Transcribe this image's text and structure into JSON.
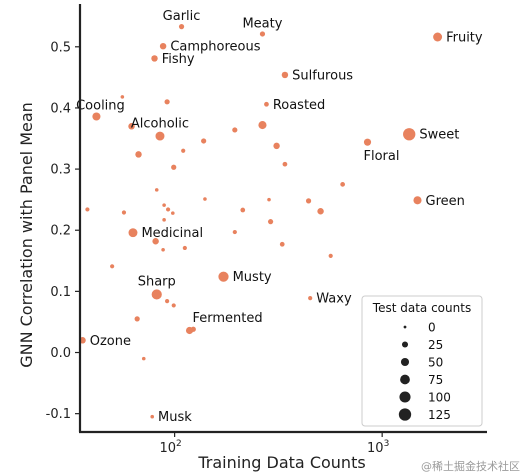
{
  "chart_data": {
    "type": "scatter",
    "xlabel": "Training Data Counts",
    "ylabel": "GNN Correlation with Panel Mean",
    "xscale": "log",
    "xlim": [
      35,
      3200
    ],
    "ylim": [
      -0.13,
      0.57
    ],
    "x_ticks": [
      {
        "value": 100,
        "label": "10",
        "exp": "2"
      },
      {
        "value": 1000,
        "label": "10",
        "exp": "3"
      }
    ],
    "y_ticks": [
      -0.1,
      0.0,
      0.1,
      0.2,
      0.3,
      0.4,
      0.5
    ],
    "point_color": "#e8825e",
    "size_legend": {
      "title": "Test data counts",
      "entries": [
        {
          "label": "0",
          "value": 0
        },
        {
          "label": "25",
          "value": 25
        },
        {
          "label": "50",
          "value": 50
        },
        {
          "label": "75",
          "value": 75
        },
        {
          "label": "100",
          "value": 100
        },
        {
          "label": "125",
          "value": 125
        }
      ],
      "placement": "lower-right"
    },
    "points": [
      {
        "x": 108,
        "y": 0.533,
        "s": 8,
        "label": "Garlic"
      },
      {
        "x": 265,
        "y": 0.521,
        "s": 8,
        "label": "Meaty"
      },
      {
        "x": 1850,
        "y": 0.516,
        "s": 30,
        "label": "Fruity"
      },
      {
        "x": 88,
        "y": 0.501,
        "s": 14,
        "label": "Camphoreous"
      },
      {
        "x": 80,
        "y": 0.481,
        "s": 14,
        "label": "Fishy"
      },
      {
        "x": 340,
        "y": 0.454,
        "s": 14,
        "label": "Sulfurous"
      },
      {
        "x": 277,
        "y": 0.406,
        "s": 6,
        "label": "Roasted"
      },
      {
        "x": 42,
        "y": 0.386,
        "s": 24,
        "label": "Cooling"
      },
      {
        "x": 85,
        "y": 0.354,
        "s": 30,
        "label": "Alcoholic"
      },
      {
        "x": 1350,
        "y": 0.357,
        "s": 60,
        "label": "Sweet"
      },
      {
        "x": 850,
        "y": 0.344,
        "s": 18,
        "label": "Floral"
      },
      {
        "x": 1480,
        "y": 0.249,
        "s": 24,
        "label": "Green"
      },
      {
        "x": 63,
        "y": 0.196,
        "s": 30,
        "label": "Medicinal"
      },
      {
        "x": 172,
        "y": 0.124,
        "s": 40,
        "label": "Musty"
      },
      {
        "x": 82,
        "y": 0.095,
        "s": 40,
        "label": "Sharp"
      },
      {
        "x": 450,
        "y": 0.089,
        "s": 4,
        "label": "Waxy"
      },
      {
        "x": 118,
        "y": 0.036,
        "s": 18,
        "label": "Fermented"
      },
      {
        "x": 36,
        "y": 0.02,
        "s": 14,
        "label": "Ozone"
      },
      {
        "x": 78,
        "y": -0.105,
        "s": 2,
        "label": "Musk"
      },
      {
        "x": 56,
        "y": 0.418,
        "s": 2
      },
      {
        "x": 92,
        "y": 0.41,
        "s": 8
      },
      {
        "x": 62,
        "y": 0.37,
        "s": 14
      },
      {
        "x": 195,
        "y": 0.364,
        "s": 8
      },
      {
        "x": 265,
        "y": 0.372,
        "s": 24
      },
      {
        "x": 138,
        "y": 0.346,
        "s": 8
      },
      {
        "x": 310,
        "y": 0.338,
        "s": 14
      },
      {
        "x": 67,
        "y": 0.324,
        "s": 14
      },
      {
        "x": 110,
        "y": 0.33,
        "s": 4
      },
      {
        "x": 99,
        "y": 0.303,
        "s": 8
      },
      {
        "x": 340,
        "y": 0.308,
        "s": 6
      },
      {
        "x": 645,
        "y": 0.275,
        "s": 6
      },
      {
        "x": 82,
        "y": 0.266,
        "s": 2
      },
      {
        "x": 140,
        "y": 0.251,
        "s": 2
      },
      {
        "x": 285,
        "y": 0.25,
        "s": 2
      },
      {
        "x": 442,
        "y": 0.248,
        "s": 8
      },
      {
        "x": 89,
        "y": 0.241,
        "s": 2
      },
      {
        "x": 38,
        "y": 0.234,
        "s": 4
      },
      {
        "x": 93,
        "y": 0.234,
        "s": 4
      },
      {
        "x": 213,
        "y": 0.233,
        "s": 6
      },
      {
        "x": 57,
        "y": 0.229,
        "s": 4
      },
      {
        "x": 98,
        "y": 0.228,
        "s": 2
      },
      {
        "x": 89,
        "y": 0.217,
        "s": 2
      },
      {
        "x": 505,
        "y": 0.231,
        "s": 14
      },
      {
        "x": 290,
        "y": 0.214,
        "s": 8
      },
      {
        "x": 195,
        "y": 0.197,
        "s": 4
      },
      {
        "x": 81,
        "y": 0.182,
        "s": 14
      },
      {
        "x": 88,
        "y": 0.168,
        "s": 2
      },
      {
        "x": 112,
        "y": 0.171,
        "s": 4
      },
      {
        "x": 330,
        "y": 0.177,
        "s": 6
      },
      {
        "x": 565,
        "y": 0.158,
        "s": 4
      },
      {
        "x": 50,
        "y": 0.141,
        "s": 4
      },
      {
        "x": 92,
        "y": 0.084,
        "s": 4
      },
      {
        "x": 99,
        "y": 0.077,
        "s": 4
      },
      {
        "x": 66,
        "y": 0.055,
        "s": 8
      },
      {
        "x": 123,
        "y": 0.038,
        "s": 8
      },
      {
        "x": 71,
        "y": -0.01,
        "s": 2
      }
    ]
  },
  "watermark": "@稀土掘金技术社区"
}
